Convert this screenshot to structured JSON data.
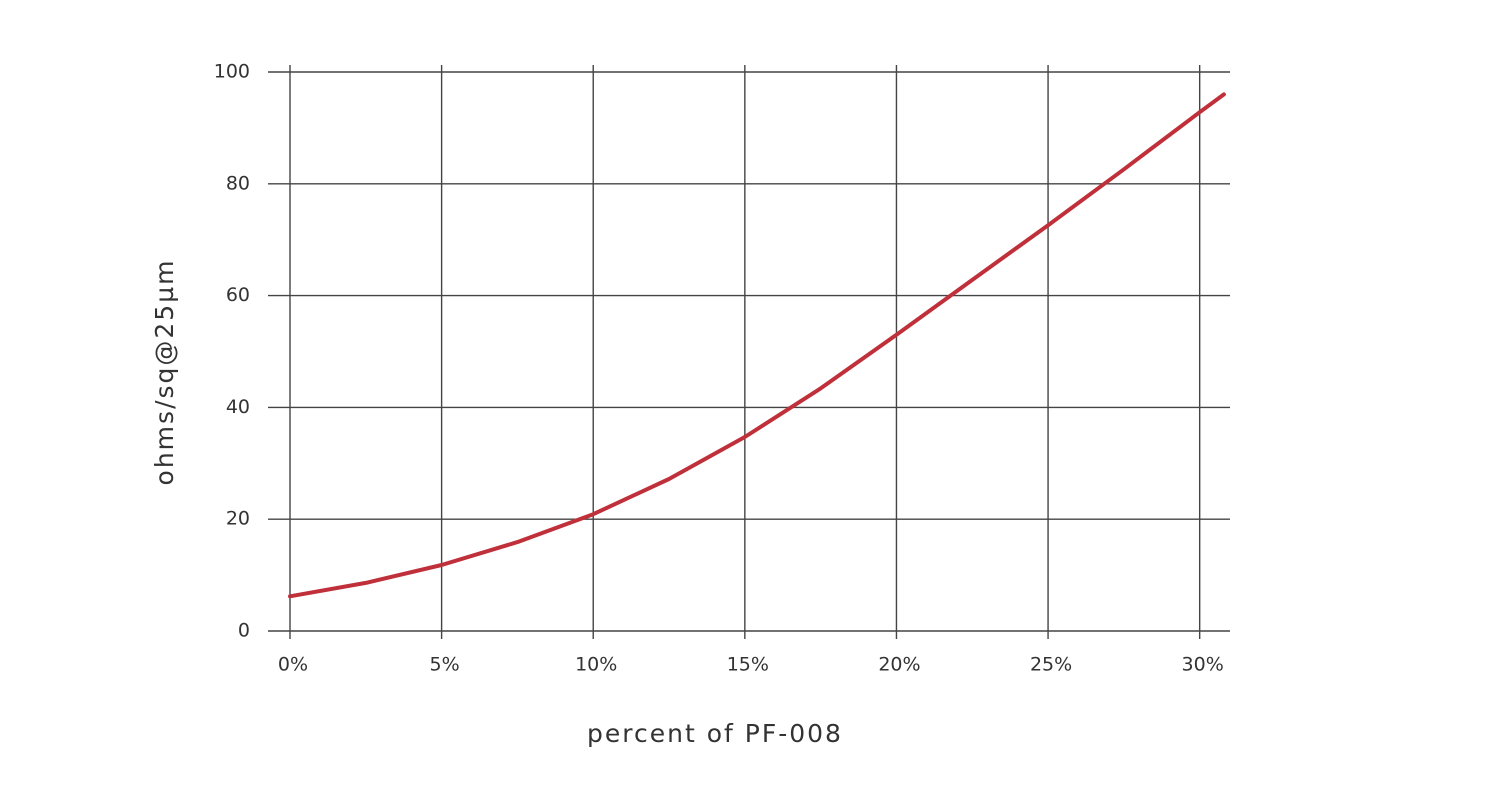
{
  "chart_data": {
    "type": "line",
    "xlabel": "percent of PF-008",
    "ylabel": "ohms/sq@25µm",
    "x": [
      0,
      2.5,
      5,
      7.5,
      10,
      12.5,
      15,
      17.5,
      20,
      22.5,
      25,
      27.5,
      30,
      30.8
    ],
    "series": [
      {
        "color": "#c0303a",
        "values": [
          6.2,
          8.6,
          11.8,
          15.9,
          20.9,
          27.2,
          34.7,
          43.4,
          53,
          62.8,
          72.6,
          82.6,
          92.8,
          96
        ]
      }
    ],
    "xlim": [
      0,
      31
    ],
    "xticks": [
      {
        "value": 0,
        "label": "0%"
      },
      {
        "value": 5,
        "label": "5%"
      },
      {
        "value": 10,
        "label": "10%"
      },
      {
        "value": 15,
        "label": "15%"
      },
      {
        "value": 20,
        "label": "20%"
      },
      {
        "value": 25,
        "label": "25%"
      },
      {
        "value": 30,
        "label": "30%"
      }
    ],
    "ylim": [
      0,
      100
    ],
    "yticks": [
      0,
      20,
      40,
      60,
      80,
      100
    ],
    "grid": true
  }
}
